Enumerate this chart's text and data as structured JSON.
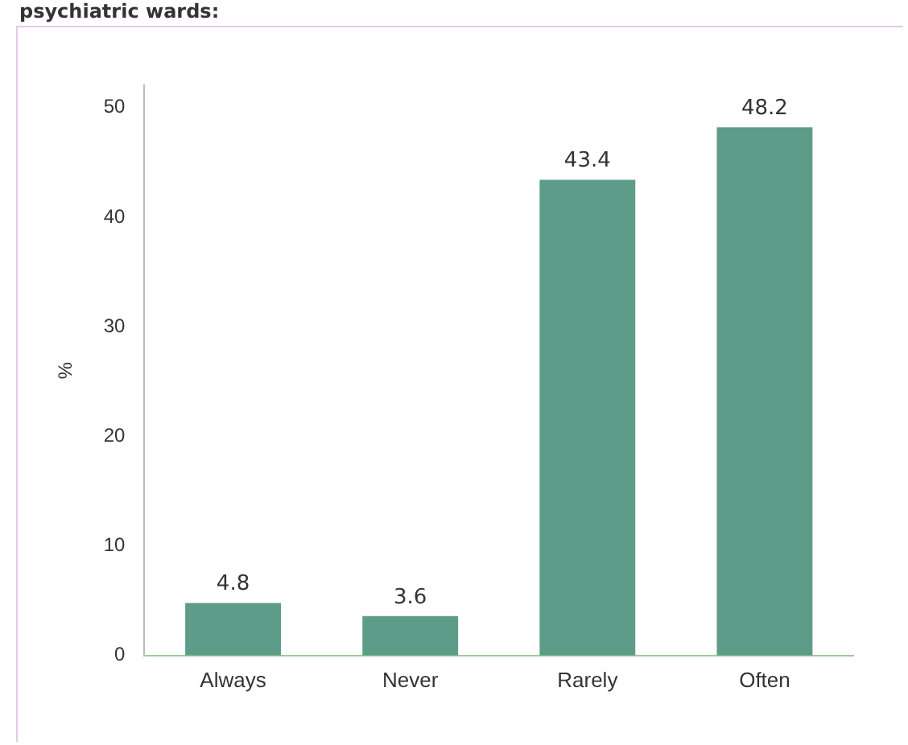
{
  "chart_data": {
    "type": "bar",
    "title": "psychiatric wards:",
    "ylabel": "%",
    "categories": [
      "Always",
      "Never",
      "Rarely",
      "Often"
    ],
    "values": [
      4.8,
      3.6,
      43.4,
      48.2
    ],
    "color": "#5e9c8a",
    "ylim": [
      0,
      52
    ],
    "yticks": [
      0,
      10,
      20,
      30,
      40,
      50
    ],
    "data_labels": true,
    "grid": false,
    "legend": false
  }
}
